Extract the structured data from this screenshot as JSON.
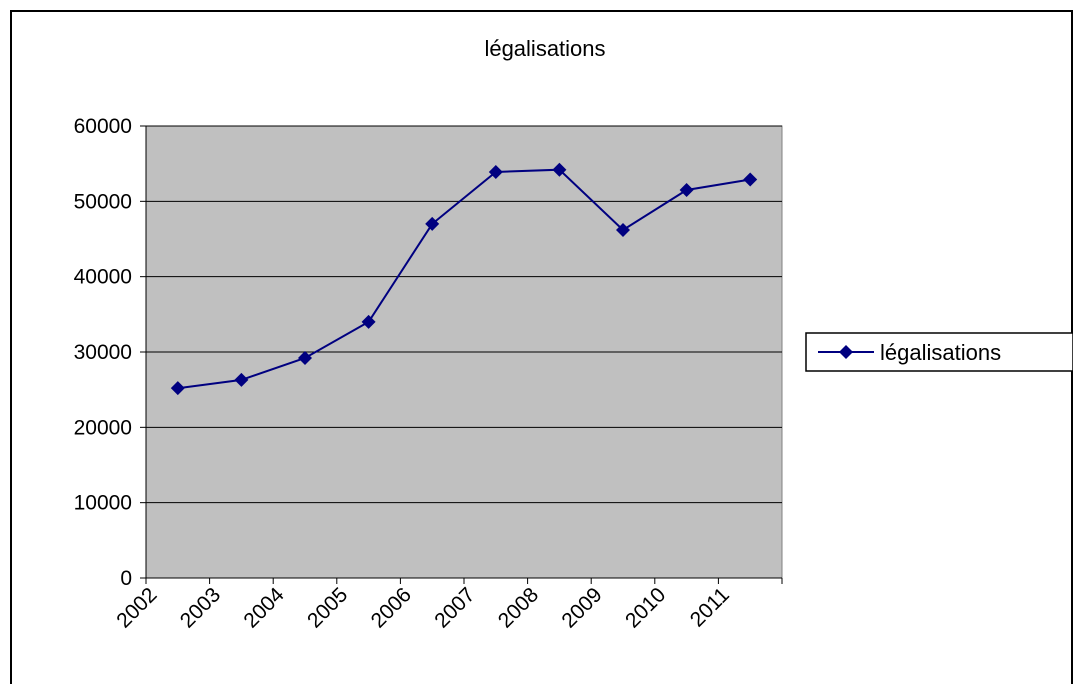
{
  "chart_data": {
    "type": "line",
    "title": "légalisations",
    "xlabel": "",
    "ylabel": "",
    "categories": [
      "2002",
      "2003",
      "2004",
      "2005",
      "2006",
      "2007",
      "2008",
      "2009",
      "2010",
      "2011"
    ],
    "series": [
      {
        "name": "légalisations",
        "values": [
          25200,
          26300,
          29200,
          34000,
          47000,
          53900,
          54200,
          46200,
          51500,
          52900
        ]
      }
    ],
    "ylim": [
      0,
      60000
    ],
    "y_ticks": [
      "0",
      "10000",
      "20000",
      "30000",
      "40000",
      "50000",
      "60000"
    ],
    "grid": true,
    "legend": "right",
    "colors": {
      "line": "#000080",
      "marker": "#000080",
      "plot_background": "#c0c0c0",
      "grid": "#000000"
    }
  }
}
